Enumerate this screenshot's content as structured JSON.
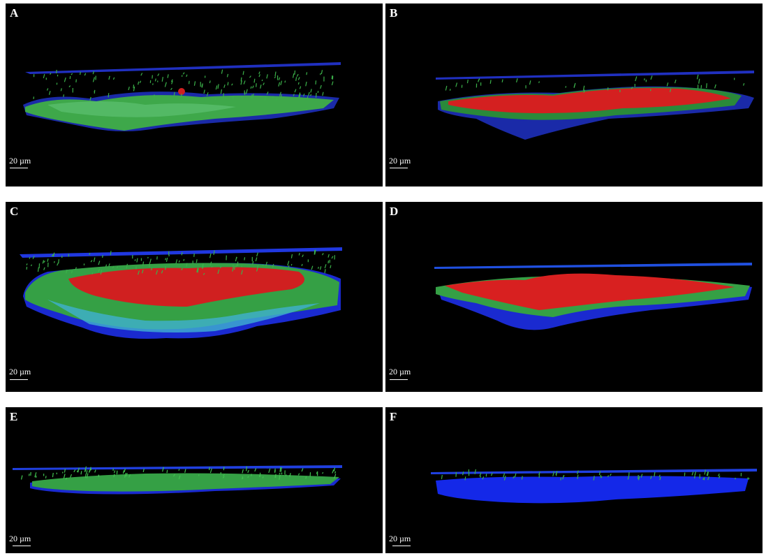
{
  "panels": [
    {
      "label": "A",
      "scale": "20 µm"
    },
    {
      "label": "B",
      "scale": "20 µm"
    },
    {
      "label": "C",
      "scale": "20 µm"
    },
    {
      "label": "D",
      "scale": "20 µm"
    },
    {
      "label": "E",
      "scale": "20 µm"
    },
    {
      "label": "F",
      "scale": "20 µm"
    }
  ]
}
